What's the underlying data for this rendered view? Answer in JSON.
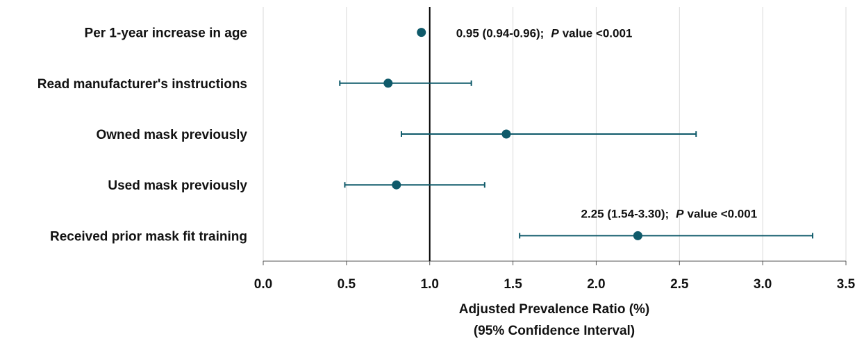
{
  "chart_data": {
    "type": "forest",
    "categories": [
      "Per 1-year increase in age",
      "Read manufacturer's instructions",
      "Owned mask previously",
      "Used mask previously",
      "Received prior mask fit training"
    ],
    "values": [
      0.95,
      0.75,
      1.46,
      0.8,
      2.25
    ],
    "lower": [
      0.94,
      0.46,
      0.83,
      0.49,
      1.54
    ],
    "upper": [
      0.96,
      1.25,
      2.6,
      1.33,
      3.3
    ],
    "annotations": [
      {
        "estimate": "0.95 (0.94-0.96);",
        "p": "P",
        "p_value": "value <0.001"
      },
      null,
      null,
      null,
      {
        "estimate": "2.25 (1.54-3.30);",
        "p": "P",
        "p_value": "value <0.001"
      }
    ],
    "color": "#0f5a6a",
    "xlabel": [
      "Adjusted Prevalence Ratio (%)",
      "(95% Confidence Interval)"
    ],
    "xlim": [
      0,
      3.5
    ],
    "xticks": [
      {
        "value": 0,
        "label": "0.0"
      },
      0.5,
      {
        "value": 1,
        "label": "1.0"
      },
      1.5,
      {
        "value": 2,
        "label": "2.0"
      },
      2.5,
      {
        "value": 3,
        "label": "3.0"
      },
      3.5
    ],
    "reference_line": 1,
    "grid": true
  }
}
